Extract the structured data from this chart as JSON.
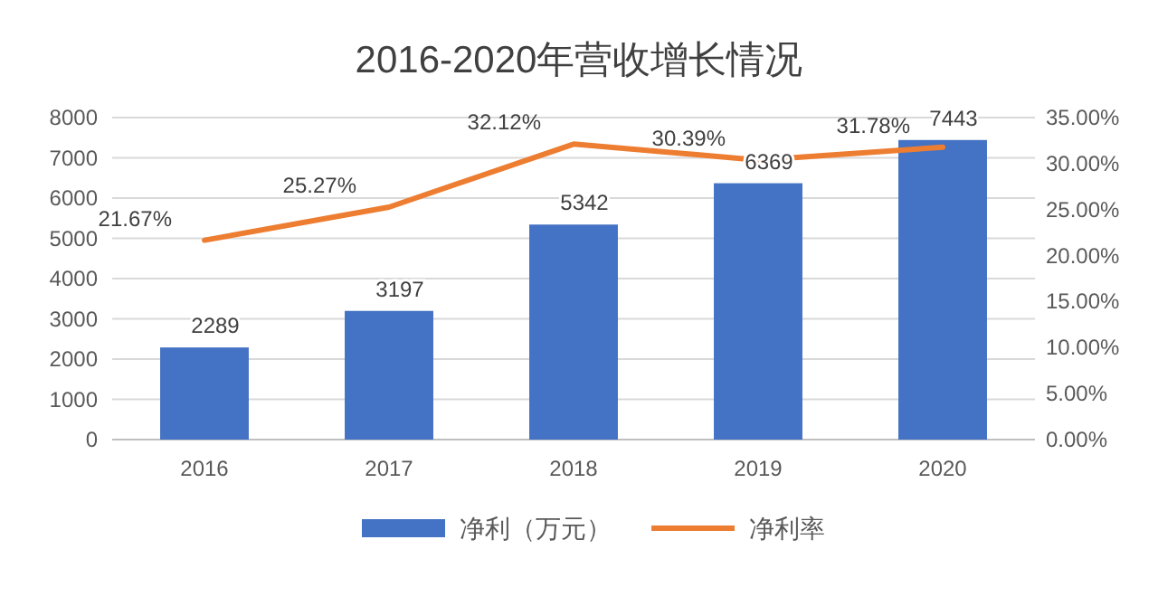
{
  "chart_data": {
    "type": "bar",
    "title": "2016-2020年营收增长情况",
    "categories": [
      "2016",
      "2017",
      "2018",
      "2019",
      "2020"
    ],
    "series": [
      {
        "name": "净利（万元）",
        "color": "#4472c4",
        "values": [
          2289,
          3197,
          5342,
          6369,
          7443
        ],
        "value_labels": [
          "2289",
          "3197",
          "5342",
          "6369",
          "7443"
        ]
      },
      {
        "name": "净利率",
        "type": "line",
        "axis": "y2",
        "color": "#ed7d31",
        "values": [
          21.67,
          25.27,
          32.12,
          30.39,
          31.78
        ],
        "value_labels": [
          "21.67%",
          "25.27%",
          "32.12%",
          "30.39%",
          "31.78%"
        ]
      }
    ],
    "ylim": [
      0,
      8000
    ],
    "yticks": [
      0,
      1000,
      2000,
      3000,
      4000,
      5000,
      6000,
      7000,
      8000
    ],
    "y2lim": [
      0,
      35
    ],
    "y2ticks": [
      {
        "value": 0,
        "label": "0.00%"
      },
      {
        "value": 5,
        "label": "5.00%"
      },
      {
        "value": 10,
        "label": "10.00%"
      },
      {
        "value": 15,
        "label": "15.00%"
      },
      {
        "value": 20,
        "label": "20.00%"
      },
      {
        "value": 25,
        "label": "25.00%"
      },
      {
        "value": 30,
        "label": "30.00%"
      },
      {
        "value": 35,
        "label": "35.00%"
      }
    ],
    "grid": "y",
    "legend": "bottom",
    "marker": "none",
    "line_style": "solid"
  }
}
